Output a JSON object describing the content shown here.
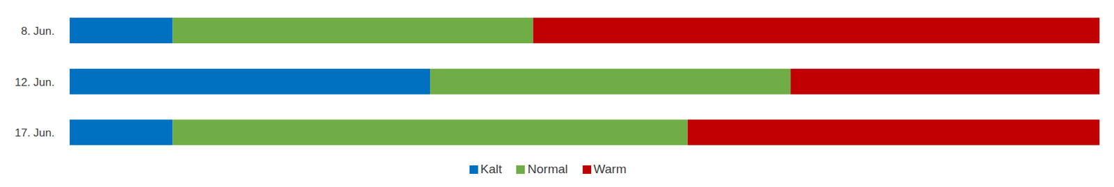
{
  "chart_data": {
    "type": "bar",
    "orientation": "horizontal",
    "stacked": true,
    "categories": [
      "8. Jun.",
      "12. Jun.",
      "17. Jun."
    ],
    "series": [
      {
        "name": "Kalt",
        "color": "#0070C0",
        "values": [
          10,
          35,
          10
        ]
      },
      {
        "name": "Normal",
        "color": "#70AD47",
        "values": [
          35,
          35,
          50
        ]
      },
      {
        "name": "Warm",
        "color": "#C00000",
        "values": [
          55,
          30,
          40
        ]
      }
    ],
    "xlim": [
      0,
      100
    ],
    "tick_labels": "y",
    "legend": "bottom"
  }
}
